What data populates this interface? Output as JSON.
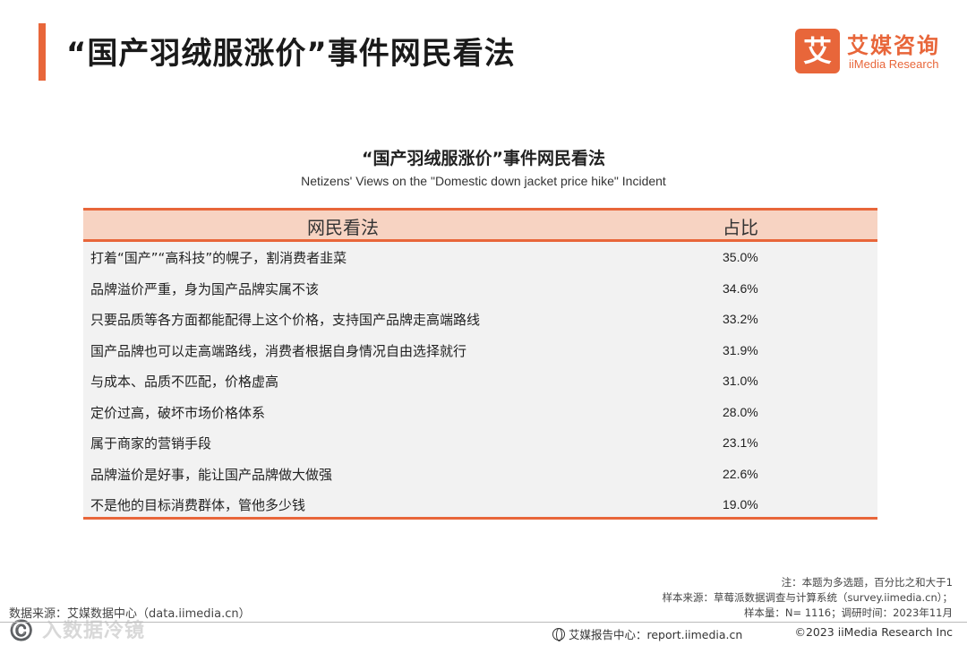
{
  "header": {
    "title": "“国产羽绒服涨价”事件网民看法"
  },
  "logo": {
    "mark": "艾",
    "name_cn": "艾媒咨询",
    "name_en": "iiMedia Research"
  },
  "chart_data": {
    "type": "table",
    "title": "“国产羽绒服涨价”事件网民看法",
    "subtitle": "Netizens' Views on the \"Domestic down jacket price hike\" Incident",
    "columns": [
      "网民看法",
      "占比"
    ],
    "rows": [
      {
        "view": "打着“国产”“高科技”的幌子，割消费者韭菜",
        "share": "35.0%"
      },
      {
        "view": "品牌溢价严重，身为国产品牌实属不该",
        "share": "34.6%"
      },
      {
        "view": "只要品质等各方面都能配得上这个价格，支持国产品牌走高端路线",
        "share": "33.2%"
      },
      {
        "view": "国产品牌也可以走高端路线，消费者根据自身情况自由选择就行",
        "share": "31.9%"
      },
      {
        "view": "与成本、品质不匹配，价格虚高",
        "share": "31.0%"
      },
      {
        "view": "定价过高，破坏市场价格体系",
        "share": "28.0%"
      },
      {
        "view": "属于商家的营销手段",
        "share": "23.1%"
      },
      {
        "view": "品牌溢价是好事，能让国产品牌做大做强",
        "share": "22.6%"
      },
      {
        "view": "不是他的目标消费群体，管他多少钱",
        "share": "19.0%"
      }
    ]
  },
  "notes": {
    "line1": "注：本题为多选题，百分比之和大于1",
    "line2": "样本来源：草莓派数据调查与计算系统（survey.iimedia.cn）；",
    "line3": "样本量：N= 1116；调研时间：2023年11月"
  },
  "source": "数据来源：艾媒数据中心（data.iimedia.cn）",
  "watermark": "©️ 入数据冷镜",
  "footer": {
    "report_center": "艾媒报告中心：report.iimedia.cn",
    "copyright": "©2023  iiMedia Research  Inc"
  },
  "colors": {
    "accent": "#e8663a",
    "header_fill": "#f7d3c2",
    "table_bg": "#f2f2f2"
  }
}
